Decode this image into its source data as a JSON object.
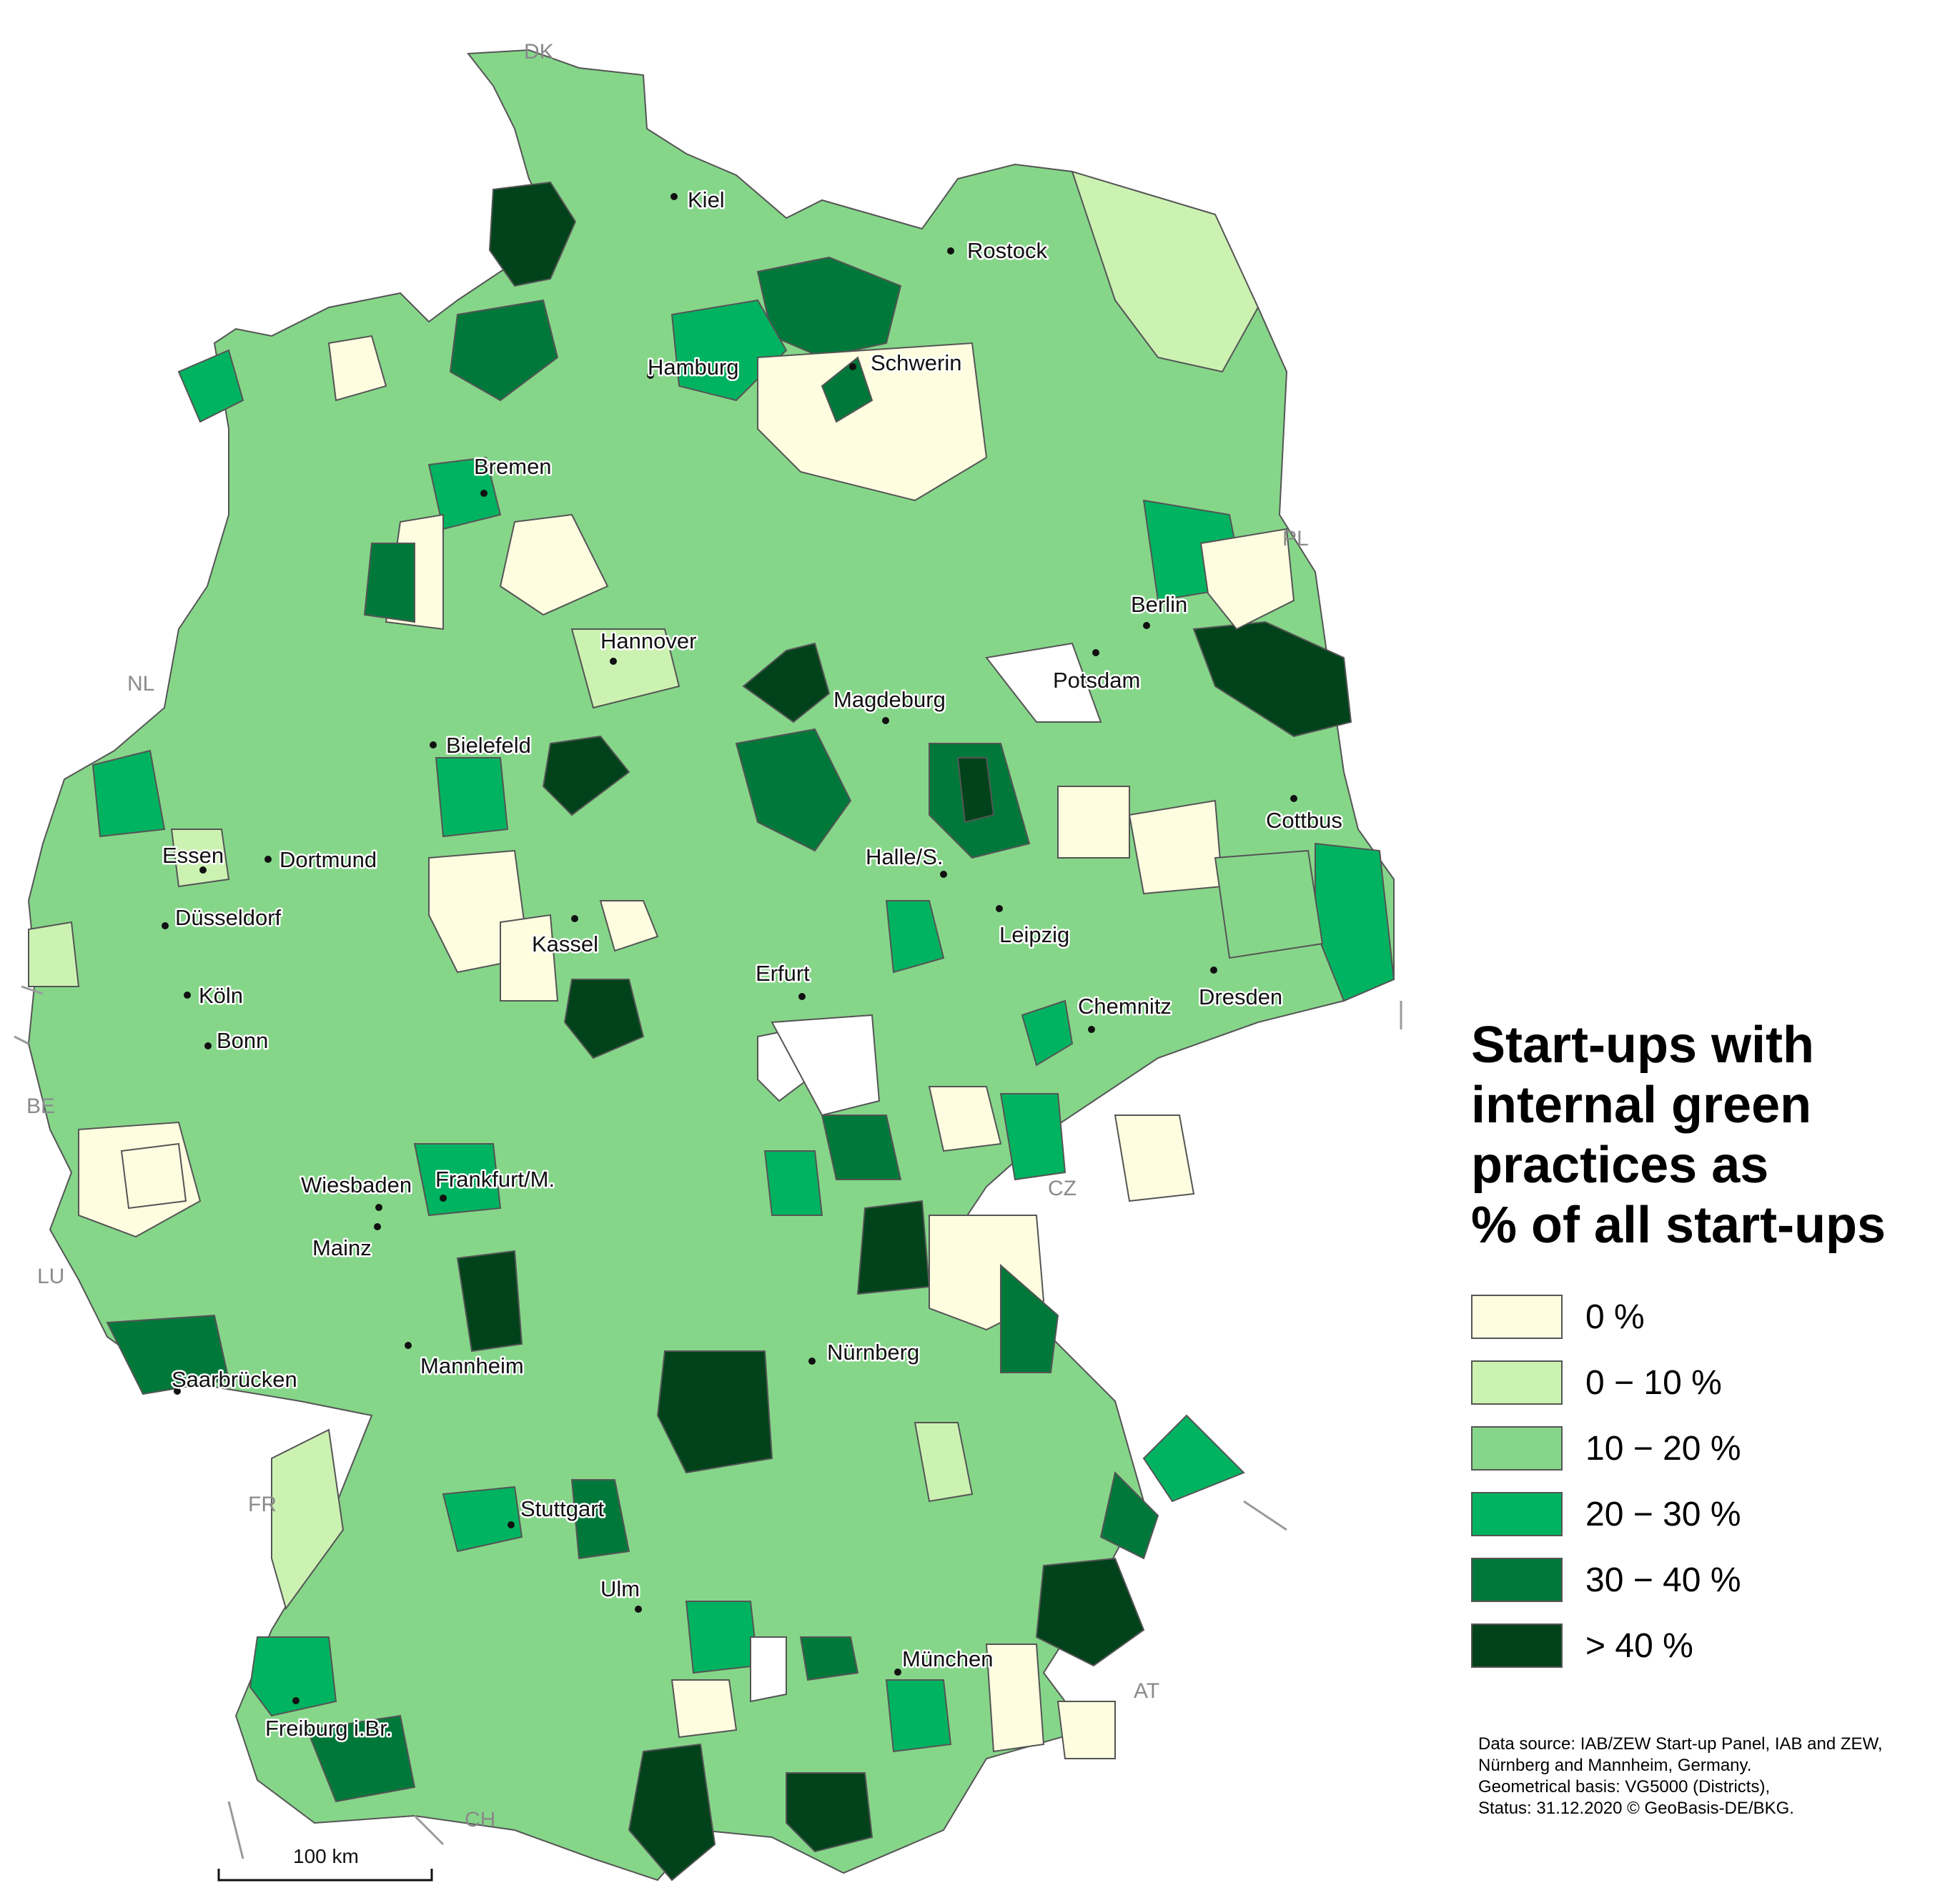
{
  "legend": {
    "title_lines": [
      "Start-ups with",
      "internal green",
      "practices as",
      "% of all start-ups"
    ],
    "classes": [
      {
        "label": "0 %",
        "color": "#fefde0"
      },
      {
        "label": "0 − 10 %",
        "color": "#ccf2b2"
      },
      {
        "label": "10 − 20 %",
        "color": "#86d68a"
      },
      {
        "label": "20 − 30 %",
        "color": "#00b360"
      },
      {
        "label": "30 − 40 %",
        "color": "#00783a"
      },
      {
        "label": "> 40 %",
        "color": "#00421a"
      }
    ]
  },
  "source_note": [
    "Data source: IAB/ZEW Start-up Panel, IAB and ZEW,",
    "Nürnberg and Mannheim, Germany.",
    "Geometrical basis: VG5000 (Districts),",
    "Status: 31.12.2020 © GeoBasis-DE/BKG."
  ],
  "scale_bar": {
    "label": "100 km"
  },
  "countries": [
    "DK",
    "PL",
    "NL",
    "BE",
    "LU",
    "FR",
    "CH",
    "AT",
    "CZ"
  ],
  "cities": [
    "Kiel",
    "Rostock",
    "Hamburg",
    "Schwerin",
    "Bremen",
    "Berlin",
    "Potsdam",
    "Hannover",
    "Magdeburg",
    "Bielefeld",
    "Cottbus",
    "Essen",
    "Dortmund",
    "Halle/S.",
    "Düsseldorf",
    "Leipzig",
    "Kassel",
    "Erfurt",
    "Köln",
    "Dresden",
    "Chemnitz",
    "Bonn",
    "Wiesbaden",
    "Frankfurt/M.",
    "Mainz",
    "Nürnberg",
    "Mannheim",
    "Saarbrücken",
    "Stuttgart",
    "Ulm",
    "München",
    "Freiburg i.Br."
  ]
}
